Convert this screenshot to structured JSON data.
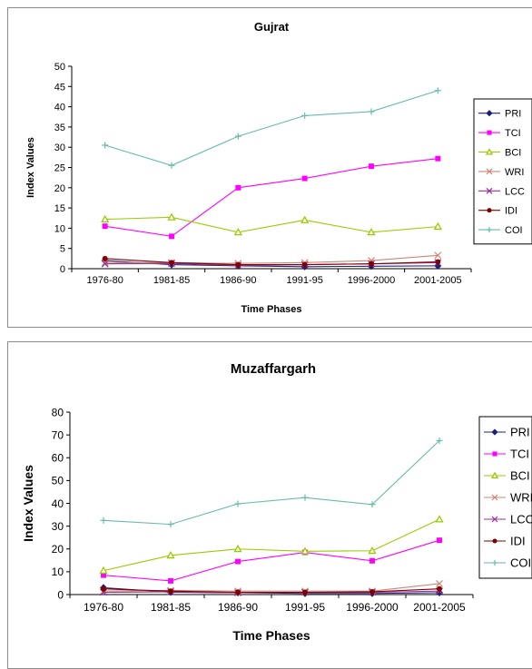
{
  "chart_data": [
    {
      "type": "line",
      "title": "Gujrat",
      "xlabel": "Time Phases",
      "ylabel": "Index Values",
      "categories": [
        "1976-80",
        "1981-85",
        "1986-90",
        "1991-95",
        "1996-2000",
        "2001-2005"
      ],
      "ylim": [
        0,
        50
      ],
      "yticks": [
        0,
        5,
        10,
        15,
        20,
        25,
        30,
        35,
        40,
        45,
        50
      ],
      "grid": false,
      "legend_position": "right",
      "series": [
        {
          "name": "PRI",
          "color": "#1f1f7a",
          "marker": "diamond",
          "values": [
            2.0,
            1.0,
            0.7,
            0.5,
            0.6,
            0.7
          ]
        },
        {
          "name": "TCI",
          "color": "#ff00ff",
          "marker": "square",
          "values": [
            10.5,
            8.0,
            20.0,
            22.3,
            25.3,
            27.2
          ]
        },
        {
          "name": "BCI",
          "color": "#99cc00",
          "marker": "triangle",
          "values": [
            12.2,
            12.7,
            9.0,
            12.0,
            9.0,
            10.4
          ]
        },
        {
          "name": "WRI",
          "color": "#cc8877",
          "marker": "x",
          "values": [
            1.5,
            1.5,
            1.3,
            1.5,
            2.0,
            3.3
          ]
        },
        {
          "name": "LCC",
          "color": "#993399",
          "marker": "x",
          "values": [
            1.2,
            1.3,
            0.8,
            1.0,
            1.2,
            1.5
          ]
        },
        {
          "name": "IDI",
          "color": "#800000",
          "marker": "circle",
          "values": [
            2.5,
            1.5,
            1.0,
            1.0,
            1.2,
            1.7
          ]
        },
        {
          "name": "COI",
          "color": "#66bbaa",
          "marker": "plus",
          "values": [
            30.5,
            25.5,
            32.7,
            37.8,
            38.8,
            44.0
          ]
        }
      ]
    },
    {
      "type": "line",
      "title": "Muzaffargarh",
      "xlabel": "Time Phases",
      "ylabel": "Index Values",
      "categories": [
        "1976-80",
        "1981-85",
        "1986-90",
        "1991-95",
        "1996-2000",
        "2001-2005"
      ],
      "ylim": [
        0,
        80
      ],
      "yticks": [
        0,
        10,
        20,
        30,
        40,
        50,
        60,
        70,
        80
      ],
      "grid": false,
      "legend_position": "right",
      "series": [
        {
          "name": "PRI",
          "color": "#1f1f7a",
          "marker": "diamond",
          "values": [
            3.0,
            1.0,
            0.8,
            0.5,
            0.5,
            0.8
          ]
        },
        {
          "name": "TCI",
          "color": "#ff00ff",
          "marker": "square",
          "values": [
            8.5,
            6.0,
            14.5,
            18.5,
            14.8,
            23.8
          ]
        },
        {
          "name": "BCI",
          "color": "#99cc00",
          "marker": "triangle",
          "values": [
            10.5,
            17.2,
            20.0,
            19.0,
            19.2,
            33.0
          ]
        },
        {
          "name": "WRI",
          "color": "#cc8877",
          "marker": "x",
          "values": [
            1.5,
            1.8,
            1.5,
            1.5,
            1.5,
            4.8
          ]
        },
        {
          "name": "LCC",
          "color": "#993399",
          "marker": "x",
          "values": [
            1.0,
            1.2,
            0.8,
            1.0,
            1.0,
            1.5
          ]
        },
        {
          "name": "IDI",
          "color": "#800000",
          "marker": "circle",
          "values": [
            2.5,
            1.5,
            1.0,
            1.0,
            1.2,
            2.5
          ]
        },
        {
          "name": "COI",
          "color": "#66bbaa",
          "marker": "plus",
          "values": [
            32.5,
            30.8,
            39.8,
            42.5,
            39.5,
            67.5
          ]
        }
      ]
    }
  ]
}
